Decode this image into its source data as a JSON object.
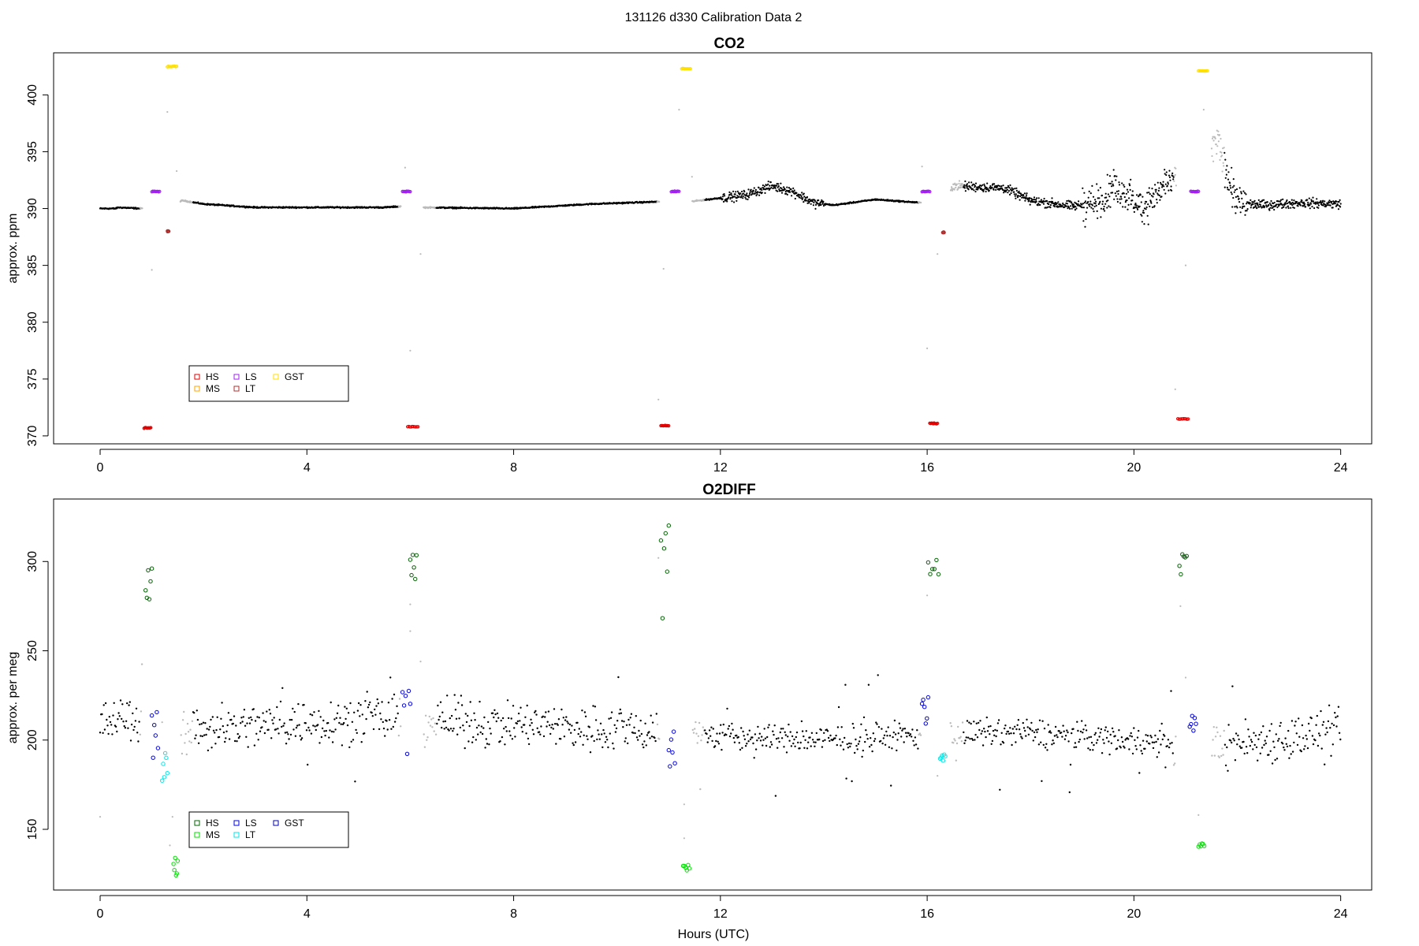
{
  "page_title": "131126   d330   Calibration Data 2",
  "colors": {
    "HS_co2": "#e00000",
    "MS_co2": "#ffa500",
    "LS_co2": "#a020f0",
    "LT_co2": "#b03030",
    "GST_co2": "#ffe000",
    "HS_o2": "#006400",
    "MS_o2": "#00e000",
    "LS_o2": "#0000e0",
    "LT_o2": "#00e8e8",
    "GST_o2": "#0000b0",
    "data": "#000000",
    "flushing": "#bbbbbb"
  },
  "chart_data": [
    {
      "type": "scatter",
      "title": "CO2",
      "xlabel": "",
      "ylabel": "approx. ppm",
      "xlim": [
        -0.9,
        24.6
      ],
      "ylim": [
        369.3,
        403.7
      ],
      "x_ticks": [
        0,
        4,
        8,
        12,
        16,
        20,
        24
      ],
      "y_ticks": [
        370,
        375,
        380,
        385,
        390,
        395,
        400
      ],
      "legend": {
        "position": "bottom-left",
        "entries": [
          {
            "label": "HS",
            "key": "HS_co2"
          },
          {
            "label": "MS",
            "key": "MS_co2"
          },
          {
            "label": "LS",
            "key": "LS_co2"
          },
          {
            "label": "LT",
            "key": "LT_co2"
          },
          {
            "label": "GST",
            "key": "GST_co2"
          }
        ]
      },
      "baseline": [
        [
          0,
          390.0
        ],
        [
          0.3,
          390.0
        ],
        [
          0.35,
          390.1
        ],
        [
          0.8,
          390.0
        ],
        [
          1.6,
          390.7
        ],
        [
          2.0,
          390.4
        ],
        [
          3.0,
          390.1
        ],
        [
          4.5,
          390.1
        ],
        [
          5.5,
          390.1
        ],
        [
          5.85,
          390.2
        ],
        [
          6.2,
          390.1
        ],
        [
          8.0,
          390.0
        ],
        [
          9.5,
          390.4
        ],
        [
          10.8,
          390.6
        ],
        [
          11.0,
          390.3
        ],
        [
          11.4,
          390.6
        ],
        [
          12.5,
          391.2
        ],
        [
          13.0,
          392.0
        ],
        [
          13.4,
          391.5
        ],
        [
          13.8,
          390.5
        ],
        [
          14.2,
          390.3
        ],
        [
          15.0,
          390.8
        ],
        [
          15.9,
          390.5
        ],
        [
          16.5,
          392.0
        ],
        [
          17.5,
          391.8
        ],
        [
          18.0,
          390.7
        ],
        [
          18.8,
          390.2
        ],
        [
          19.3,
          390.5
        ],
        [
          19.6,
          391.8
        ],
        [
          20.2,
          390.2
        ],
        [
          20.6,
          392.0
        ],
        [
          20.9,
          393.0
        ],
        [
          21.4,
          394.0
        ],
        [
          21.6,
          396.0
        ],
        [
          21.8,
          393.0
        ],
        [
          22.0,
          390.5
        ],
        [
          22.5,
          390.3
        ],
        [
          23.2,
          390.5
        ],
        [
          24.0,
          390.4
        ]
      ],
      "calibration_runs": [
        {
          "tank": "HS",
          "x": [
            0.85,
            0.98
          ],
          "y": 370.7
        },
        {
          "tank": "LS",
          "x": [
            1.0,
            1.15
          ],
          "y": 391.5
        },
        {
          "tank": "GST",
          "x": [
            1.3,
            1.48
          ],
          "y": 402.5
        },
        {
          "tank": "LT",
          "x": [
            1.3,
            1.33
          ],
          "y": 388.0
        },
        {
          "tank": "HS",
          "x": [
            5.95,
            6.15
          ],
          "y": 370.8
        },
        {
          "tank": "LS",
          "x": [
            5.85,
            6.0
          ],
          "y": 391.5
        },
        {
          "tank": "HS",
          "x": [
            10.85,
            11.0
          ],
          "y": 370.9
        },
        {
          "tank": "LS",
          "x": [
            11.05,
            11.2
          ],
          "y": 391.5
        },
        {
          "tank": "GST",
          "x": [
            11.25,
            11.42
          ],
          "y": 402.3
        },
        {
          "tank": "HS",
          "x": [
            16.05,
            16.2
          ],
          "y": 371.1
        },
        {
          "tank": "LS",
          "x": [
            15.9,
            16.05
          ],
          "y": 391.5
        },
        {
          "tank": "LT",
          "x": [
            16.3,
            16.33
          ],
          "y": 387.9
        },
        {
          "tank": "HS",
          "x": [
            20.85,
            21.05
          ],
          "y": 371.5
        },
        {
          "tank": "LS",
          "x": [
            21.1,
            21.25
          ],
          "y": 391.5
        },
        {
          "tank": "GST",
          "x": [
            21.25,
            21.42
          ],
          "y": 402.1
        }
      ]
    },
    {
      "type": "scatter",
      "title": "O2DIFF",
      "xlabel": "Hours (UTC)",
      "ylabel": "approx. per meg",
      "xlim": [
        -0.9,
        24.6
      ],
      "ylim": [
        116,
        335
      ],
      "x_ticks": [
        0,
        4,
        8,
        12,
        16,
        20,
        24
      ],
      "y_ticks": [
        150,
        200,
        250,
        300
      ],
      "legend": {
        "position": "bottom-left",
        "entries": [
          {
            "label": "HS",
            "key": "HS_o2"
          },
          {
            "label": "MS",
            "key": "MS_o2"
          },
          {
            "label": "LS",
            "key": "LS_o2"
          },
          {
            "label": "LT",
            "key": "LT_o2"
          },
          {
            "label": "GST",
            "key": "GST_o2"
          }
        ]
      },
      "baseline": [
        [
          0,
          210
        ],
        [
          1.0,
          212
        ],
        [
          1.5,
          205
        ],
        [
          3.0,
          208
        ],
        [
          5.0,
          212
        ],
        [
          7.0,
          210
        ],
        [
          9.0,
          207
        ],
        [
          11.0,
          206
        ],
        [
          12.0,
          202
        ],
        [
          14.0,
          200
        ],
        [
          16.0,
          203
        ],
        [
          18.0,
          204
        ],
        [
          20.0,
          200
        ],
        [
          21.0,
          196
        ],
        [
          22.0,
          198
        ],
        [
          24.0,
          205
        ]
      ],
      "calibration_runs": [
        {
          "tank": "HS",
          "x": [
            0.88,
            1.0
          ],
          "y": [
            272,
            298
          ]
        },
        {
          "tank": "LS",
          "x": [
            1.0,
            1.12
          ],
          "y": [
            190,
            217
          ]
        },
        {
          "tank": "LT",
          "x": [
            1.2,
            1.3
          ],
          "y": [
            177,
            193
          ]
        },
        {
          "tank": "MS",
          "x": [
            1.42,
            1.5
          ],
          "y": [
            124,
            134
          ]
        },
        {
          "tank": "LS",
          "x": [
            5.85,
            6.0
          ],
          "y": [
            184,
            228
          ]
        },
        {
          "tank": "HS",
          "x": [
            6.0,
            6.12
          ],
          "y": [
            287,
            306
          ]
        },
        {
          "tank": "HS",
          "x": [
            10.85,
            11.0
          ],
          "y": [
            265,
            331
          ]
        },
        {
          "tank": "LS",
          "x": [
            11.0,
            11.12
          ],
          "y": [
            185,
            228
          ]
        },
        {
          "tank": "MS",
          "x": [
            11.28,
            11.4
          ],
          "y": [
            126,
            131
          ]
        },
        {
          "tank": "LS",
          "x": [
            15.9,
            16.02
          ],
          "y": [
            203,
            225
          ]
        },
        {
          "tank": "HS",
          "x": [
            16.02,
            16.22
          ],
          "y": [
            292,
            301
          ]
        },
        {
          "tank": "LT",
          "x": [
            16.25,
            16.35
          ],
          "y": [
            188,
            192
          ]
        },
        {
          "tank": "HS",
          "x": [
            20.88,
            21.02
          ],
          "y": [
            291,
            306
          ]
        },
        {
          "tank": "LS",
          "x": [
            21.08,
            21.2
          ],
          "y": [
            205,
            214
          ]
        },
        {
          "tank": "MS",
          "x": [
            21.25,
            21.36
          ],
          "y": [
            140,
            143
          ]
        }
      ]
    }
  ]
}
